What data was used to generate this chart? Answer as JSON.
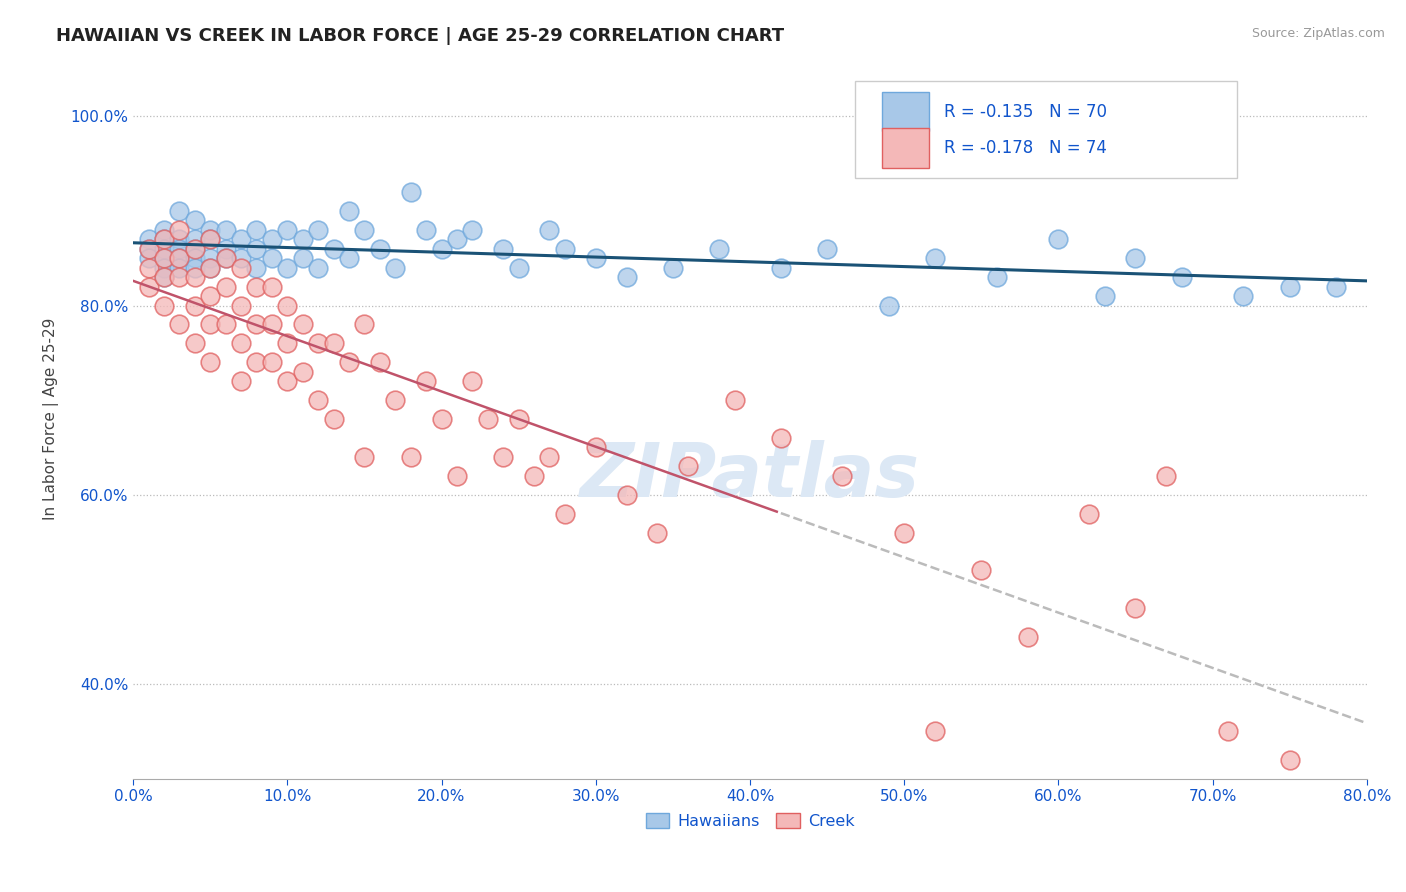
{
  "title": "HAWAIIAN VS CREEK IN LABOR FORCE | AGE 25-29 CORRELATION CHART",
  "source": "Source: ZipAtlas.com",
  "ylabel": "In Labor Force | Age 25-29",
  "ytick_vals": [
    0.4,
    0.6,
    0.8,
    1.0
  ],
  "xmin": 0.0,
  "xmax": 0.8,
  "ymin": 0.3,
  "ymax": 1.06,
  "legend_hawaiians_r": -0.135,
  "legend_hawaiians_n": 70,
  "legend_creek_r": -0.178,
  "legend_creek_n": 74,
  "color_hawaiian_fill": "#a8c8e8",
  "color_hawaiian_edge": "#6fa8dc",
  "color_creek_fill": "#f4b8b8",
  "color_creek_edge": "#e06060",
  "color_trend_hawaiian": "#1a5276",
  "color_trend_creek_solid": "#c0536a",
  "color_trend_creek_dash": "#bbbbbb",
  "color_axis_label": "#1155cc",
  "color_legend_text": "#1155cc",
  "color_legend_r": "#cc0000",
  "watermark_text": "ZIPatlas",
  "hawaiian_x": [
    0.01,
    0.01,
    0.01,
    0.02,
    0.02,
    0.02,
    0.02,
    0.02,
    0.02,
    0.03,
    0.03,
    0.03,
    0.03,
    0.03,
    0.04,
    0.04,
    0.04,
    0.04,
    0.04,
    0.05,
    0.05,
    0.05,
    0.05,
    0.06,
    0.06,
    0.06,
    0.07,
    0.07,
    0.08,
    0.08,
    0.08,
    0.09,
    0.09,
    0.1,
    0.1,
    0.11,
    0.11,
    0.12,
    0.12,
    0.13,
    0.14,
    0.14,
    0.15,
    0.16,
    0.17,
    0.18,
    0.19,
    0.2,
    0.21,
    0.22,
    0.24,
    0.25,
    0.27,
    0.28,
    0.3,
    0.32,
    0.35,
    0.38,
    0.42,
    0.45,
    0.49,
    0.52,
    0.56,
    0.6,
    0.63,
    0.65,
    0.68,
    0.72,
    0.75,
    0.78
  ],
  "hawaiian_y": [
    0.87,
    0.86,
    0.85,
    0.88,
    0.87,
    0.86,
    0.85,
    0.84,
    0.83,
    0.9,
    0.87,
    0.86,
    0.85,
    0.84,
    0.89,
    0.87,
    0.86,
    0.85,
    0.84,
    0.88,
    0.87,
    0.85,
    0.84,
    0.88,
    0.86,
    0.85,
    0.87,
    0.85,
    0.88,
    0.86,
    0.84,
    0.87,
    0.85,
    0.88,
    0.84,
    0.87,
    0.85,
    0.88,
    0.84,
    0.86,
    0.9,
    0.85,
    0.88,
    0.86,
    0.84,
    0.92,
    0.88,
    0.86,
    0.87,
    0.88,
    0.86,
    0.84,
    0.88,
    0.86,
    0.85,
    0.83,
    0.84,
    0.86,
    0.84,
    0.86,
    0.8,
    0.85,
    0.83,
    0.87,
    0.81,
    0.85,
    0.83,
    0.81,
    0.82,
    0.82
  ],
  "creek_x": [
    0.01,
    0.01,
    0.01,
    0.02,
    0.02,
    0.02,
    0.02,
    0.03,
    0.03,
    0.03,
    0.03,
    0.04,
    0.04,
    0.04,
    0.04,
    0.05,
    0.05,
    0.05,
    0.05,
    0.05,
    0.06,
    0.06,
    0.06,
    0.07,
    0.07,
    0.07,
    0.07,
    0.08,
    0.08,
    0.08,
    0.09,
    0.09,
    0.09,
    0.1,
    0.1,
    0.1,
    0.11,
    0.11,
    0.12,
    0.12,
    0.13,
    0.13,
    0.14,
    0.15,
    0.15,
    0.16,
    0.17,
    0.18,
    0.19,
    0.2,
    0.21,
    0.22,
    0.23,
    0.24,
    0.25,
    0.26,
    0.27,
    0.28,
    0.3,
    0.32,
    0.34,
    0.36,
    0.39,
    0.42,
    0.46,
    0.5,
    0.52,
    0.55,
    0.58,
    0.62,
    0.65,
    0.67,
    0.71,
    0.75
  ],
  "creek_y": [
    0.86,
    0.84,
    0.82,
    0.87,
    0.85,
    0.83,
    0.8,
    0.88,
    0.85,
    0.83,
    0.78,
    0.86,
    0.83,
    0.8,
    0.76,
    0.87,
    0.84,
    0.81,
    0.78,
    0.74,
    0.85,
    0.82,
    0.78,
    0.84,
    0.8,
    0.76,
    0.72,
    0.82,
    0.78,
    0.74,
    0.82,
    0.78,
    0.74,
    0.8,
    0.76,
    0.72,
    0.78,
    0.73,
    0.76,
    0.7,
    0.76,
    0.68,
    0.74,
    0.78,
    0.64,
    0.74,
    0.7,
    0.64,
    0.72,
    0.68,
    0.62,
    0.72,
    0.68,
    0.64,
    0.68,
    0.62,
    0.64,
    0.58,
    0.65,
    0.6,
    0.56,
    0.63,
    0.7,
    0.66,
    0.62,
    0.56,
    0.35,
    0.52,
    0.45,
    0.58,
    0.48,
    0.62,
    0.35,
    0.32
  ],
  "creek_trend_solid_end": 0.42,
  "creek_trend_dash_start": 0.42
}
